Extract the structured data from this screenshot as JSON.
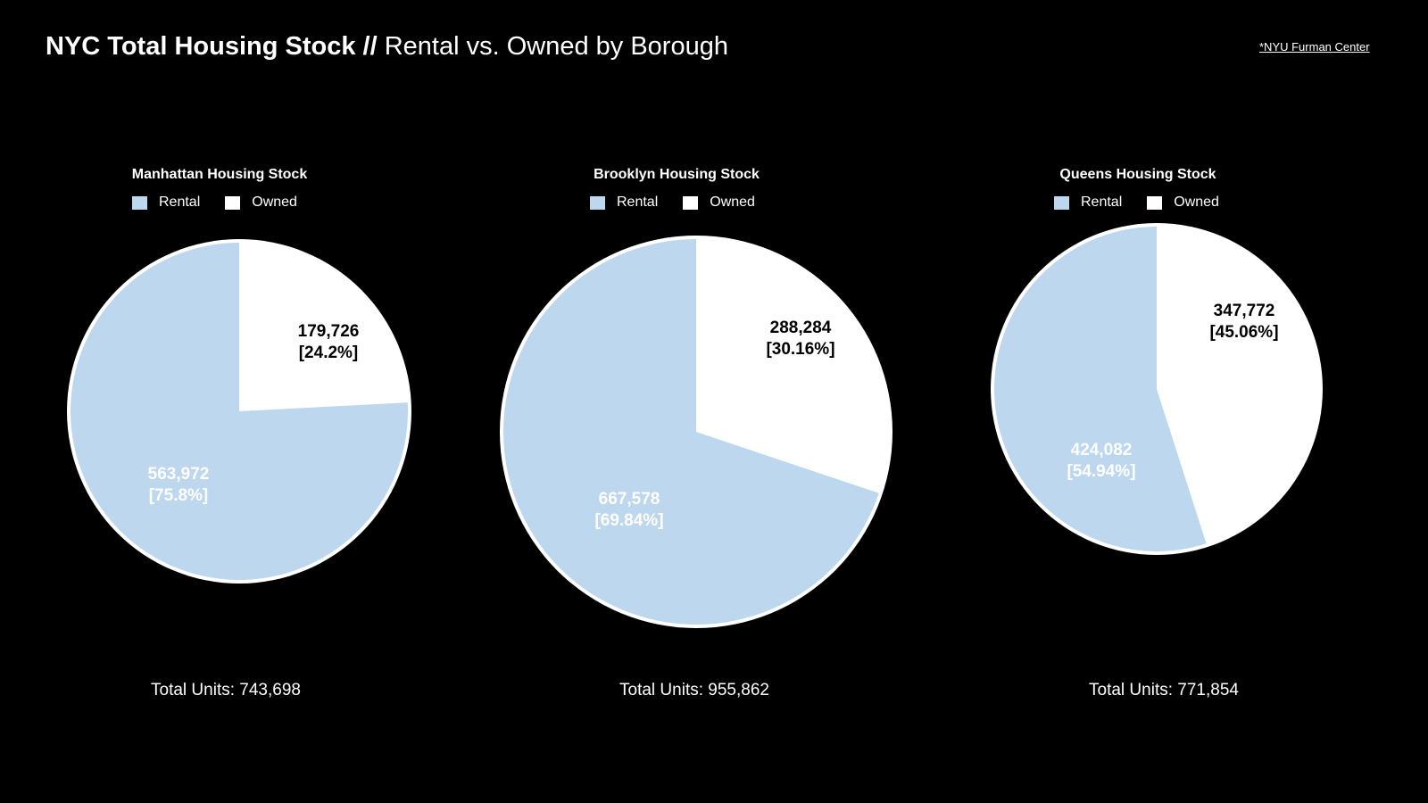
{
  "header": {
    "title_bold": "NYC Total Housing Stock //",
    "title_light": " Rental vs. Owned by Borough",
    "source_link": "*NYU Furman Center"
  },
  "colors": {
    "background": "#000000",
    "rental": "#bdd7ee",
    "owned": "#ffffff",
    "rental_label_text": "#ffffff",
    "owned_label_text": "#000000"
  },
  "legend": {
    "rental": "Rental",
    "owned": "Owned"
  },
  "chart_data": [
    {
      "type": "pie",
      "title": "Manhattan Housing Stock",
      "categories": [
        "Rental",
        "Owned"
      ],
      "values": [
        563972,
        179726
      ],
      "value_labels": [
        "563,972",
        "179,726"
      ],
      "percent_labels": [
        "[75.8%]",
        "[24.2%]"
      ],
      "total_label": "Total Units: 743,698",
      "legend_position": "top"
    },
    {
      "type": "pie",
      "title": "Brooklyn Housing Stock",
      "categories": [
        "Rental",
        "Owned"
      ],
      "values": [
        667578,
        288284
      ],
      "value_labels": [
        "667,578",
        "288,284"
      ],
      "percent_labels": [
        "[69.84%]",
        "[30.16%]"
      ],
      "total_label": "Total Units: 955,862",
      "legend_position": "top"
    },
    {
      "type": "pie",
      "title": "Queens Housing Stock",
      "categories": [
        "Rental",
        "Owned"
      ],
      "values": [
        424082,
        347772
      ],
      "value_labels": [
        "424,082",
        "347,772"
      ],
      "percent_labels": [
        "[54.94%]",
        "[45.06%]"
      ],
      "total_label": "Total Units: 771,854",
      "legend_position": "top"
    }
  ]
}
